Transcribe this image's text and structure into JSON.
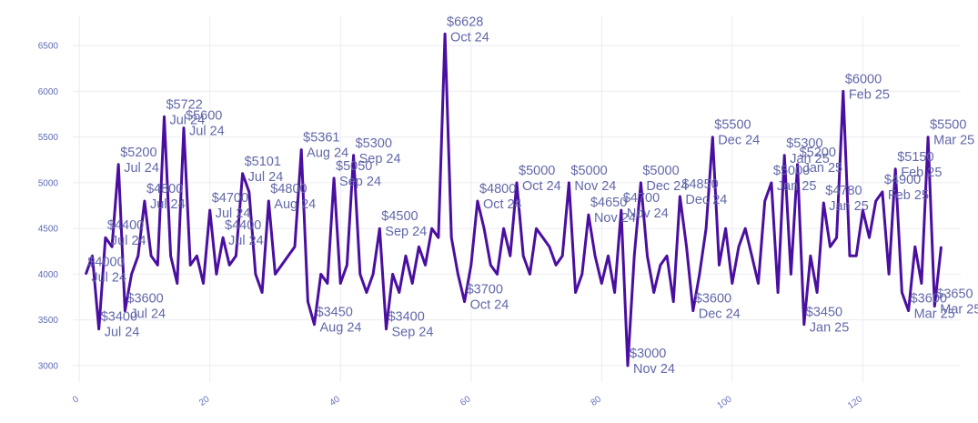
{
  "chart_data": {
    "type": "line",
    "title": "",
    "xlabel": "",
    "ylabel": "",
    "xlim": [
      -1,
      135
    ],
    "ylim": [
      2820,
      6820
    ],
    "grid": true,
    "line_color": "#4a0fa0",
    "label_color": "#6268a8",
    "xticks": [
      0,
      20,
      40,
      60,
      80,
      100,
      120
    ],
    "yticks": [
      3000,
      3500,
      4000,
      4500,
      5000,
      5500,
      6000,
      6500
    ],
    "x": [
      1,
      2,
      3,
      4,
      5,
      6,
      7,
      8,
      9,
      10,
      11,
      12,
      13,
      14,
      15,
      16,
      17,
      18,
      19,
      20,
      21,
      22,
      23,
      24,
      25,
      26,
      27,
      28,
      29,
      30,
      31,
      32,
      33,
      34,
      35,
      36,
      37,
      38,
      39,
      40,
      41,
      42,
      43,
      44,
      45,
      46,
      47,
      48,
      49,
      50,
      51,
      52,
      53,
      54,
      55,
      56,
      57,
      58,
      59,
      60,
      61,
      62,
      63,
      64,
      65,
      66,
      67,
      68,
      69,
      70,
      71,
      72,
      73,
      74,
      75,
      76,
      77,
      78,
      79,
      80,
      81,
      82,
      83,
      84,
      85,
      86,
      87,
      88,
      89,
      90,
      91,
      92,
      93,
      94,
      95,
      96,
      97,
      98,
      99,
      100,
      101,
      102,
      103,
      104,
      105,
      106,
      107,
      108,
      109,
      110,
      111,
      112,
      113,
      114,
      115,
      116,
      117,
      118,
      119,
      120,
      121,
      122,
      123,
      124,
      125,
      126,
      127,
      128,
      129,
      130,
      131,
      132
    ],
    "values": [
      4000,
      4200,
      3400,
      4400,
      4300,
      5200,
      3600,
      4000,
      4200,
      4800,
      4200,
      4100,
      5722,
      4200,
      3900,
      5600,
      4100,
      4200,
      3900,
      4700,
      4000,
      4400,
      4100,
      4200,
      5101,
      4900,
      4000,
      3800,
      4800,
      4000,
      4100,
      4200,
      4300,
      5361,
      3700,
      3450,
      4000,
      3900,
      5050,
      3900,
      4100,
      5300,
      4000,
      3800,
      4000,
      4500,
      3400,
      4000,
      3800,
      4200,
      3900,
      4300,
      4100,
      4500,
      4400,
      6628,
      4400,
      4000,
      3700,
      4100,
      4800,
      4500,
      4100,
      4000,
      4500,
      4200,
      5000,
      4200,
      4000,
      4500,
      4400,
      4300,
      4100,
      4200,
      5000,
      3800,
      4000,
      4650,
      4200,
      3900,
      4200,
      3800,
      4700,
      3000,
      4200,
      5000,
      4200,
      3800,
      4100,
      4200,
      3700,
      4850,
      4300,
      3600,
      4000,
      4500,
      5500,
      4100,
      4500,
      3900,
      4300,
      4500,
      4200,
      3900,
      4800,
      5000,
      3800,
      5300,
      4000,
      5200,
      3450,
      4200,
      3800,
      4780,
      4300,
      4400,
      6000,
      4200,
      4200,
      4700,
      4400,
      4800,
      4900,
      4000,
      5150,
      3800,
      3600,
      4300,
      3900,
      5500,
      3650,
      4300
    ]
  },
  "labels": [
    {
      "i": 0,
      "v": "$4000",
      "m": "Jul 24"
    },
    {
      "i": 2,
      "v": "$3400",
      "m": "Jul 24"
    },
    {
      "i": 3,
      "v": "$4400",
      "m": "Jul 24"
    },
    {
      "i": 5,
      "v": "$5200",
      "m": "Jul 24"
    },
    {
      "i": 6,
      "v": "$3600",
      "m": "Jul 24"
    },
    {
      "i": 9,
      "v": "$4800",
      "m": "Jul 24"
    },
    {
      "i": 12,
      "v": "$5722",
      "m": "Jul 24"
    },
    {
      "i": 15,
      "v": "$5600",
      "m": "Jul 24"
    },
    {
      "i": 19,
      "v": "$4700",
      "m": "Jul 24"
    },
    {
      "i": 21,
      "v": "$4400",
      "m": "Jul 24"
    },
    {
      "i": 24,
      "v": "$5101",
      "m": "Jul 24"
    },
    {
      "i": 28,
      "v": "$4800",
      "m": "Aug 24"
    },
    {
      "i": 33,
      "v": "$5361",
      "m": "Aug 24"
    },
    {
      "i": 35,
      "v": "$3450",
      "m": "Aug 24"
    },
    {
      "i": 38,
      "v": "$5050",
      "m": "Sep 24"
    },
    {
      "i": 41,
      "v": "$5300",
      "m": "Sep 24"
    },
    {
      "i": 45,
      "v": "$4500",
      "m": "Sep 24"
    },
    {
      "i": 46,
      "v": "$3400",
      "m": "Sep 24"
    },
    {
      "i": 55,
      "v": "$6628",
      "m": "Oct 24"
    },
    {
      "i": 58,
      "v": "$3700",
      "m": "Oct 24"
    },
    {
      "i": 60,
      "v": "$4800",
      "m": "Oct 24"
    },
    {
      "i": 66,
      "v": "$5000",
      "m": "Oct 24"
    },
    {
      "i": 74,
      "v": "$5000",
      "m": "Nov 24"
    },
    {
      "i": 77,
      "v": "$4650",
      "m": "Nov 24"
    },
    {
      "i": 82,
      "v": "$4700",
      "m": "Nov 24"
    },
    {
      "i": 83,
      "v": "$3000",
      "m": "Nov 24"
    },
    {
      "i": 85,
      "v": "$5000",
      "m": "Dec 24"
    },
    {
      "i": 91,
      "v": "$4850",
      "m": "Dec 24"
    },
    {
      "i": 93,
      "v": "$3600",
      "m": "Dec 24"
    },
    {
      "i": 96,
      "v": "$5500",
      "m": "Dec 24"
    },
    {
      "i": 105,
      "v": "$5000",
      "m": "Jan 25"
    },
    {
      "i": 107,
      "v": "$5300",
      "m": "Jan 25"
    },
    {
      "i": 109,
      "v": "$5200",
      "m": "Jan 25"
    },
    {
      "i": 110,
      "v": "$3450",
      "m": "Jan 25"
    },
    {
      "i": 113,
      "v": "$4780",
      "m": "Jan 25"
    },
    {
      "i": 116,
      "v": "$6000",
      "m": "Feb 25"
    },
    {
      "i": 122,
      "v": "$4900",
      "m": "Feb 25"
    },
    {
      "i": 124,
      "v": "$5150",
      "m": "Feb 25"
    },
    {
      "i": 126,
      "v": "$3600",
      "m": "Mar 25"
    },
    {
      "i": 129,
      "v": "$5500",
      "m": "Mar 25"
    },
    {
      "i": 130,
      "v": "$3650",
      "m": "Mar 25"
    }
  ]
}
